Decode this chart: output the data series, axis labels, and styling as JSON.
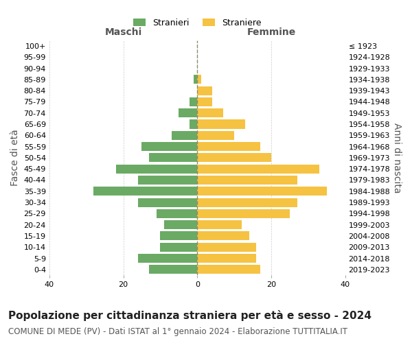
{
  "age_groups": [
    "100+",
    "95-99",
    "90-94",
    "85-89",
    "80-84",
    "75-79",
    "70-74",
    "65-69",
    "60-64",
    "55-59",
    "50-54",
    "45-49",
    "40-44",
    "35-39",
    "30-34",
    "25-29",
    "20-24",
    "15-19",
    "10-14",
    "5-9",
    "0-4"
  ],
  "birth_years": [
    "≤ 1923",
    "1924-1928",
    "1929-1933",
    "1934-1938",
    "1939-1943",
    "1944-1948",
    "1949-1953",
    "1954-1958",
    "1959-1963",
    "1964-1968",
    "1969-1973",
    "1974-1978",
    "1979-1983",
    "1984-1988",
    "1989-1993",
    "1994-1998",
    "1999-2003",
    "2004-2008",
    "2009-2013",
    "2014-2018",
    "2019-2023"
  ],
  "maschi": [
    0,
    0,
    0,
    1,
    0,
    2,
    5,
    2,
    7,
    15,
    13,
    22,
    16,
    28,
    16,
    11,
    9,
    10,
    10,
    16,
    13
  ],
  "femmine": [
    0,
    0,
    0,
    1,
    4,
    4,
    7,
    13,
    10,
    17,
    20,
    33,
    27,
    35,
    27,
    25,
    12,
    14,
    16,
    16,
    17
  ],
  "male_color": "#6aaa64",
  "female_color": "#f5c242",
  "grid_color": "#cccccc",
  "center_line_color": "#8b8b6b",
  "bg_color": "#ffffff",
  "bar_height": 0.8,
  "xlim": 40,
  "title": "Popolazione per cittadinanza straniera per età e sesso - 2024",
  "subtitle": "COMUNE DI MEDE (PV) - Dati ISTAT al 1° gennaio 2024 - Elaborazione TUTTITALIA.IT",
  "left_label": "Maschi",
  "right_label": "Femmine",
  "left_legend": "Stranieri",
  "right_legend": "Straniere",
  "ylabel": "Fasce di età",
  "right_ylabel": "Anni di nascita",
  "title_fontsize": 11,
  "subtitle_fontsize": 8.5,
  "label_fontsize": 10,
  "tick_fontsize": 8,
  "legend_fontsize": 9
}
